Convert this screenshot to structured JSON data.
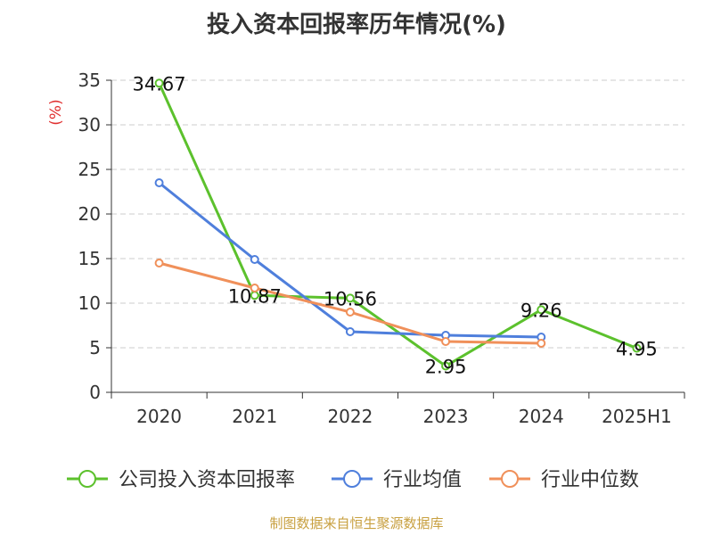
{
  "chart_data": {
    "type": "line",
    "title": "投入资本回报率历年情况(%)",
    "unit_label": "(%)",
    "categories": [
      "2020",
      "2021",
      "2022",
      "2023",
      "2024",
      "2025H1"
    ],
    "ylim": [
      0,
      35
    ],
    "yticks": [
      0,
      5,
      10,
      15,
      20,
      25,
      30,
      35
    ],
    "grid": true,
    "legend_position": "bottom",
    "series": [
      {
        "name": "公司投入资本回报率",
        "color": "#5cc12d",
        "values": [
          34.67,
          10.87,
          10.56,
          2.95,
          9.26,
          4.95
        ],
        "labels": [
          "34.67",
          "10.87",
          "10.56",
          "2.95",
          "9.26",
          "4.95"
        ]
      },
      {
        "name": "行业均值",
        "color": "#4f7fdc",
        "values": [
          23.5,
          14.9,
          6.8,
          6.4,
          6.2,
          null
        ]
      },
      {
        "name": "行业中位数",
        "color": "#f0905a",
        "values": [
          14.5,
          11.7,
          9.0,
          5.7,
          5.5,
          null
        ]
      }
    ]
  },
  "source": "制图数据来自恒生聚源数据库"
}
